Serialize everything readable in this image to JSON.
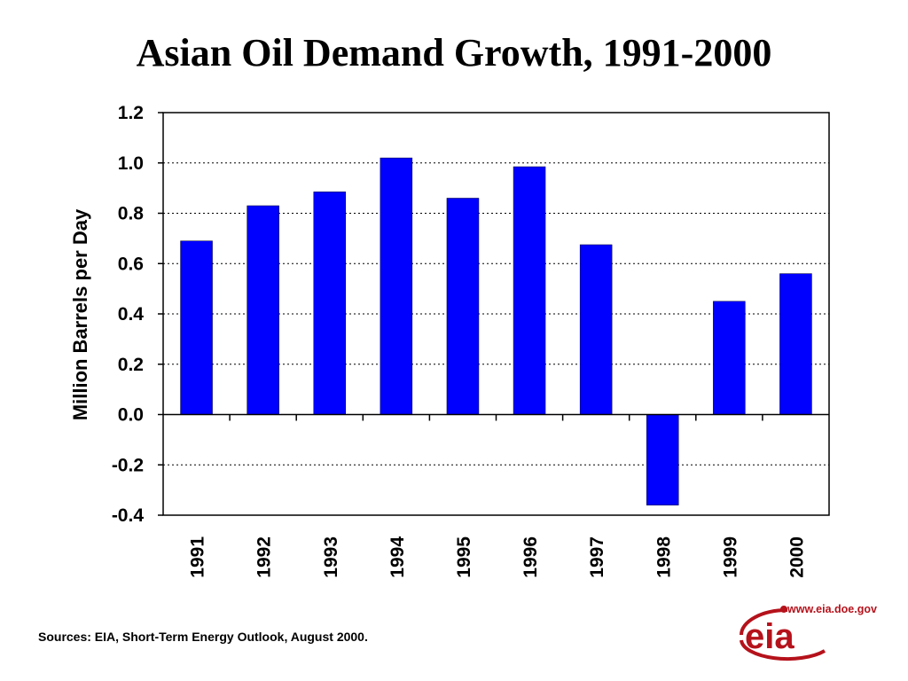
{
  "chart_data": {
    "type": "bar",
    "title": "Asian Oil Demand Growth, 1991-2000",
    "xlabel": "",
    "ylabel": "Million Barrels per Day",
    "categories": [
      "1991",
      "1992",
      "1993",
      "1994",
      "1995",
      "1996",
      "1997",
      "1998",
      "1999",
      "2000"
    ],
    "values": [
      0.69,
      0.83,
      0.885,
      1.02,
      0.86,
      0.985,
      0.675,
      -0.36,
      0.45,
      0.56
    ],
    "ylim": [
      -0.4,
      1.2
    ],
    "yticks": [
      "-0.4",
      "-0.2",
      "0.0",
      "0.2",
      "0.4",
      "0.6",
      "0.8",
      "1.0",
      "1.2"
    ],
    "grid": true,
    "bar_color": "#0000ff"
  },
  "source_text": "Sources: EIA, Short-Term Energy Outlook, August 2000.",
  "logo": {
    "url_text": "www.eia.doe.gov",
    "mark_text": "eia",
    "color": "#b5121b"
  }
}
